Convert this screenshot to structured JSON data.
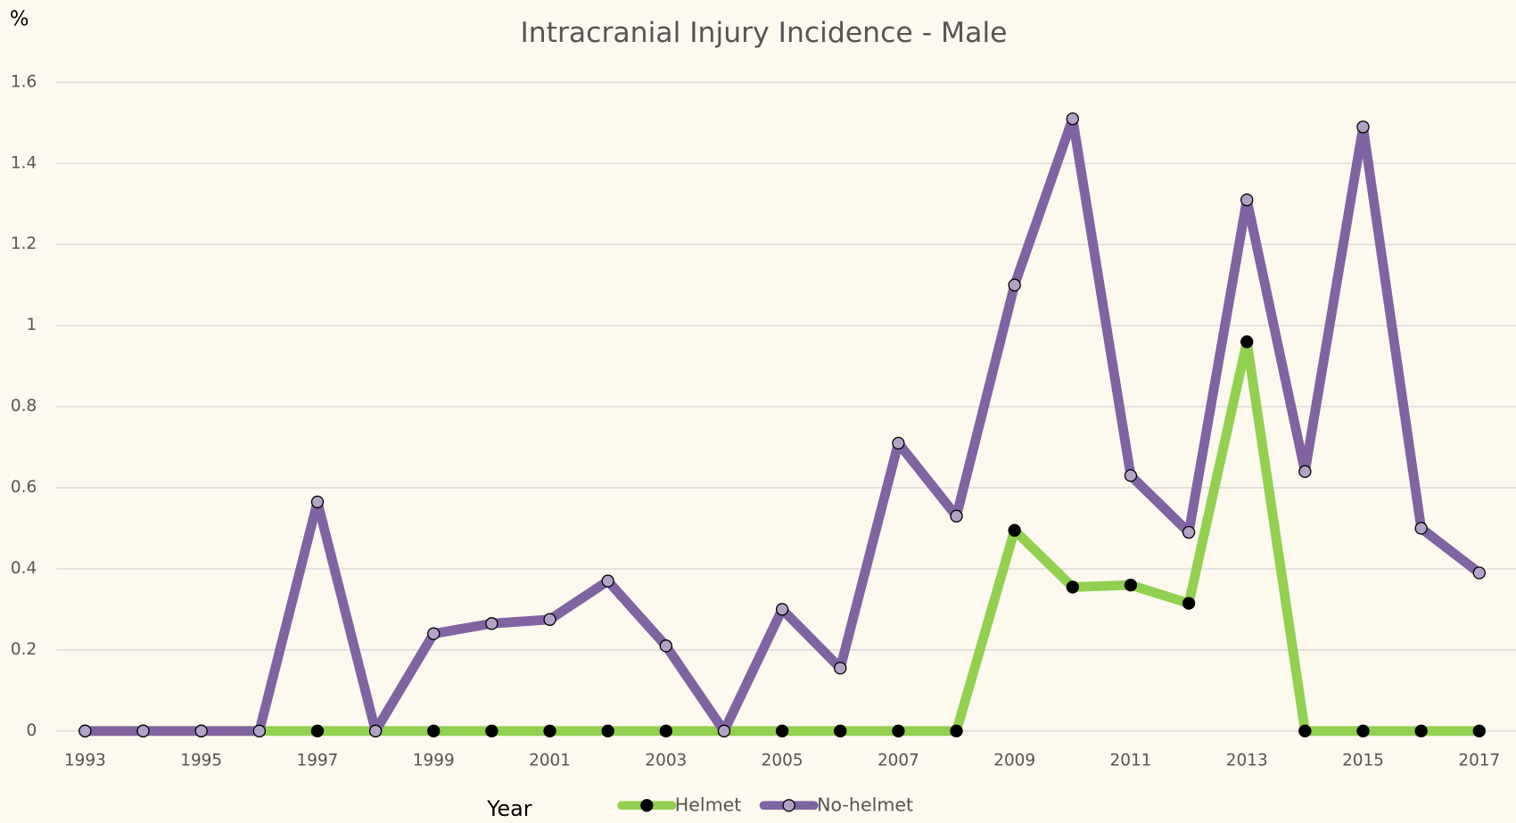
{
  "chart_data": {
    "type": "line",
    "title": "Intracranial Injury Incidence - Male",
    "ylabel": "%",
    "xlabel": "Year",
    "x": [
      1993,
      1994,
      1995,
      1996,
      1997,
      1998,
      1999,
      2000,
      2001,
      2002,
      2003,
      2004,
      2005,
      2006,
      2007,
      2008,
      2009,
      2010,
      2011,
      2012,
      2013,
      2014,
      2015,
      2016,
      2017
    ],
    "series": [
      {
        "name": "Helmet",
        "color": "#92d050",
        "marker_color": "#000000",
        "values": [
          0,
          0,
          0,
          0,
          0,
          0,
          0,
          0,
          0,
          0,
          0,
          0,
          0,
          0,
          0,
          0,
          0.495,
          0.355,
          0.36,
          0.315,
          0.96,
          0,
          0,
          0,
          0
        ]
      },
      {
        "name": "No-helmet",
        "color": "#8064a2",
        "marker_color": "#b3a2c7",
        "values": [
          0,
          0,
          0,
          0,
          0.565,
          0,
          0.24,
          0.265,
          0.275,
          0.37,
          0.21,
          0,
          0.3,
          0.155,
          0.71,
          0.53,
          1.1,
          1.51,
          0.63,
          0.49,
          1.31,
          0.64,
          1.49,
          0.5,
          0.39
        ]
      }
    ],
    "xlim": [
      1993,
      2017
    ],
    "xticks": [
      1993,
      1995,
      1997,
      1999,
      2001,
      2003,
      2005,
      2007,
      2009,
      2011,
      2013,
      2015,
      2017
    ],
    "ylim": [
      0,
      1.6
    ],
    "yticks": [
      0,
      0.2,
      0.4,
      0.6,
      0.8,
      1,
      1.2,
      1.4,
      1.6
    ],
    "grid": true,
    "legend": "bottom"
  }
}
